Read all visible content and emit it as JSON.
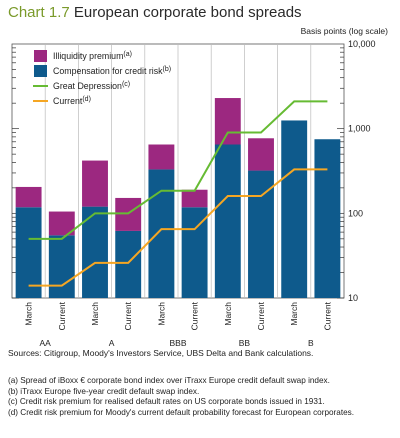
{
  "header": {
    "number": "Chart 1.7",
    "title": "European corporate bond spreads"
  },
  "unit_label": "Basis points (log scale)",
  "colors": {
    "illiquidity": "#9c2880",
    "credit": "#0e5a8c",
    "great_depression": "#66bb33",
    "current": "#f5a623"
  },
  "chart_data": {
    "type": "bar",
    "title": "European corporate bond spreads",
    "ylabel": "Basis points (log scale)",
    "yscale": "log",
    "ylim": [
      10,
      10000
    ],
    "yticks": [
      "10",
      "100",
      "1,000",
      "10,000"
    ],
    "categories": [
      "March",
      "Current",
      "March",
      "Current",
      "March",
      "Current",
      "March",
      "Current",
      "March",
      "Current"
    ],
    "groups": [
      "AA",
      "A",
      "BBB",
      "BB",
      "B"
    ],
    "stacked_series": [
      {
        "name": "Compensation for credit risk",
        "note": "(b)",
        "values": [
          118,
          55,
          120,
          62,
          330,
          118,
          650,
          320,
          1250,
          750
        ]
      },
      {
        "name": "Illiquidity premium",
        "note": "(a)",
        "values": [
          87,
          50,
          300,
          90,
          320,
          72,
          1650,
          450,
          0,
          0
        ]
      }
    ],
    "line_series": [
      {
        "name": "Great Depression",
        "note": "(c)",
        "values": [
          50,
          50,
          100,
          100,
          185,
          185,
          900,
          900,
          2100,
          2100
        ]
      },
      {
        "name": "Current",
        "note": "(d)",
        "values": [
          14,
          14,
          26,
          26,
          65,
          65,
          160,
          160,
          330,
          330
        ]
      }
    ],
    "legend": "top-left"
  },
  "sources": "Sources: Citigroup, Moody's Investors Service, UBS Delta and Bank calculations.",
  "notes": [
    "(a)  Spread of iBoxx € corporate bond index over iTraxx Europe credit default swap index.",
    "(b)  iTraxx Europe five-year credit default swap index.",
    "(c)  Credit risk premium for realised default rates on US corporate bonds issued in 1931.",
    "(d)  Credit risk premium for Moody's current default probability forecast for European corporates."
  ]
}
